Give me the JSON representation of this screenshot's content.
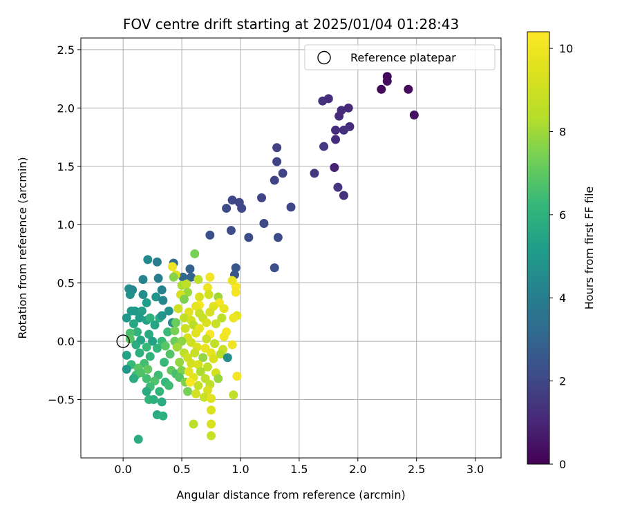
{
  "chart_data": {
    "type": "scatter",
    "title": "FOV centre drift starting at 2025/01/04 01:28:43",
    "xlabel": "Angular distance from reference (arcmin)",
    "ylabel": "Rotation from reference (arcmin)",
    "xlim": [
      -0.36,
      3.22
    ],
    "ylim": [
      -1.0,
      2.6
    ],
    "xticks": [
      0.0,
      0.5,
      1.0,
      1.5,
      2.0,
      2.5,
      3.0
    ],
    "xtick_labels": [
      "0.0",
      "0.5",
      "1.0",
      "1.5",
      "2.0",
      "2.5",
      "3.0"
    ],
    "yticks": [
      -0.5,
      0.0,
      0.5,
      1.0,
      1.5,
      2.0,
      2.5
    ],
    "ytick_labels": [
      "−0.5",
      "0.0",
      "0.5",
      "1.0",
      "1.5",
      "2.0",
      "2.5"
    ],
    "grid": true,
    "legend": {
      "position": "top-right",
      "entries": [
        "Reference platepar"
      ]
    },
    "colorbar": {
      "label": "Hours from first FF file",
      "min": 0,
      "max": 10.4,
      "ticks": [
        0,
        2,
        4,
        6,
        8,
        10
      ],
      "tick_labels": [
        "0",
        "2",
        "4",
        "6",
        "8",
        "10"
      ],
      "colormap": "viridis"
    },
    "reference_point": {
      "x": 0.0,
      "y": 0.0
    },
    "points": [
      {
        "x": 2.25,
        "y": 2.27,
        "h": 0.2
      },
      {
        "x": 2.25,
        "y": 2.23,
        "h": 0.3
      },
      {
        "x": 2.2,
        "y": 2.16,
        "h": 0.2
      },
      {
        "x": 2.43,
        "y": 2.16,
        "h": 0.3
      },
      {
        "x": 2.48,
        "y": 1.94,
        "h": 0.4
      },
      {
        "x": 1.75,
        "y": 2.08,
        "h": 1.2
      },
      {
        "x": 1.7,
        "y": 2.06,
        "h": 1.3
      },
      {
        "x": 1.86,
        "y": 1.98,
        "h": 1.2
      },
      {
        "x": 1.92,
        "y": 2.0,
        "h": 1.1
      },
      {
        "x": 1.84,
        "y": 1.93,
        "h": 1.1
      },
      {
        "x": 1.93,
        "y": 1.84,
        "h": 1.2
      },
      {
        "x": 1.81,
        "y": 1.81,
        "h": 1.2
      },
      {
        "x": 1.88,
        "y": 1.81,
        "h": 1.3
      },
      {
        "x": 1.81,
        "y": 1.73,
        "h": 1.2
      },
      {
        "x": 1.71,
        "y": 1.67,
        "h": 1.6
      },
      {
        "x": 1.8,
        "y": 1.49,
        "h": 0.9
      },
      {
        "x": 1.83,
        "y": 1.32,
        "h": 1.4
      },
      {
        "x": 1.88,
        "y": 1.25,
        "h": 1.3
      },
      {
        "x": 1.63,
        "y": 1.44,
        "h": 1.5
      },
      {
        "x": 1.31,
        "y": 1.66,
        "h": 1.8
      },
      {
        "x": 1.31,
        "y": 1.54,
        "h": 1.9
      },
      {
        "x": 1.36,
        "y": 1.44,
        "h": 1.9
      },
      {
        "x": 1.29,
        "y": 1.38,
        "h": 1.9
      },
      {
        "x": 1.18,
        "y": 1.23,
        "h": 1.9
      },
      {
        "x": 1.43,
        "y": 1.15,
        "h": 2.0
      },
      {
        "x": 0.93,
        "y": 1.21,
        "h": 2.0
      },
      {
        "x": 0.99,
        "y": 1.19,
        "h": 2.0
      },
      {
        "x": 1.01,
        "y": 1.14,
        "h": 2.0
      },
      {
        "x": 0.88,
        "y": 1.14,
        "h": 2.1
      },
      {
        "x": 1.2,
        "y": 1.01,
        "h": 2.1
      },
      {
        "x": 0.92,
        "y": 0.95,
        "h": 2.2
      },
      {
        "x": 0.74,
        "y": 0.91,
        "h": 2.3
      },
      {
        "x": 1.07,
        "y": 0.89,
        "h": 2.2
      },
      {
        "x": 1.32,
        "y": 0.89,
        "h": 2.2
      },
      {
        "x": 1.29,
        "y": 0.63,
        "h": 2.3
      },
      {
        "x": 0.96,
        "y": 0.63,
        "h": 2.5
      },
      {
        "x": 0.95,
        "y": 0.57,
        "h": 2.5
      },
      {
        "x": 0.57,
        "y": 0.62,
        "h": 2.9
      },
      {
        "x": 0.58,
        "y": 0.55,
        "h": 3.0
      },
      {
        "x": 0.51,
        "y": 0.55,
        "h": 3.2
      },
      {
        "x": 0.43,
        "y": 0.67,
        "h": 3.3
      },
      {
        "x": 0.29,
        "y": 0.68,
        "h": 4.0
      },
      {
        "x": 0.21,
        "y": 0.7,
        "h": 4.5
      },
      {
        "x": 0.3,
        "y": 0.54,
        "h": 4.0
      },
      {
        "x": 0.17,
        "y": 0.53,
        "h": 4.2
      },
      {
        "x": 0.05,
        "y": 0.45,
        "h": 4.6
      },
      {
        "x": 0.08,
        "y": 0.44,
        "h": 4.4
      },
      {
        "x": 0.33,
        "y": 0.44,
        "h": 4.1
      },
      {
        "x": 0.06,
        "y": 0.4,
        "h": 4.7
      },
      {
        "x": 0.17,
        "y": 0.4,
        "h": 4.6
      },
      {
        "x": 0.28,
        "y": 0.38,
        "h": 4.9
      },
      {
        "x": 0.34,
        "y": 0.35,
        "h": 4.3
      },
      {
        "x": 0.2,
        "y": 0.33,
        "h": 5.2
      },
      {
        "x": 0.07,
        "y": 0.26,
        "h": 5.0
      },
      {
        "x": 0.1,
        "y": 0.26,
        "h": 5.0
      },
      {
        "x": 0.16,
        "y": 0.26,
        "h": 5.3
      },
      {
        "x": 0.39,
        "y": 0.26,
        "h": 4.8
      },
      {
        "x": 0.42,
        "y": 0.16,
        "h": 4.6
      },
      {
        "x": 0.03,
        "y": 0.2,
        "h": 5.0
      },
      {
        "x": 0.14,
        "y": 0.2,
        "h": 5.1
      },
      {
        "x": 0.2,
        "y": 0.18,
        "h": 5.4
      },
      {
        "x": 0.23,
        "y": 0.2,
        "h": 6.0
      },
      {
        "x": 0.31,
        "y": 0.2,
        "h": 5.8
      },
      {
        "x": 0.33,
        "y": 0.22,
        "h": 4.9
      },
      {
        "x": 0.09,
        "y": 0.15,
        "h": 5.6
      },
      {
        "x": 0.27,
        "y": 0.14,
        "h": 5.5
      },
      {
        "x": 0.12,
        "y": 0.08,
        "h": 6.0
      },
      {
        "x": 0.06,
        "y": 0.07,
        "h": 6.6
      },
      {
        "x": 0.22,
        "y": 0.06,
        "h": 5.7
      },
      {
        "x": 0.38,
        "y": 0.08,
        "h": 6.3
      },
      {
        "x": 0.06,
        "y": 0.02,
        "h": 6.8
      },
      {
        "x": 0.15,
        "y": 0.01,
        "h": 5.5
      },
      {
        "x": 0.25,
        "y": 0.0,
        "h": 5.4
      },
      {
        "x": 0.33,
        "y": 0.0,
        "h": 6.3
      },
      {
        "x": 0.44,
        "y": 0.0,
        "h": 7.2
      },
      {
        "x": 0.11,
        "y": -0.03,
        "h": 5.8
      },
      {
        "x": 0.2,
        "y": -0.05,
        "h": 6.3
      },
      {
        "x": 0.29,
        "y": -0.06,
        "h": 6.2
      },
      {
        "x": 0.36,
        "y": -0.04,
        "h": 6.9
      },
      {
        "x": 0.03,
        "y": -0.12,
        "h": 5.4
      },
      {
        "x": 0.14,
        "y": -0.1,
        "h": 5.9
      },
      {
        "x": 0.23,
        "y": -0.13,
        "h": 6.1
      },
      {
        "x": 0.4,
        "y": -0.11,
        "h": 6.8
      },
      {
        "x": 0.07,
        "y": -0.2,
        "h": 6.3
      },
      {
        "x": 0.18,
        "y": -0.19,
        "h": 6.5
      },
      {
        "x": 0.35,
        "y": -0.18,
        "h": 6.3
      },
      {
        "x": 0.13,
        "y": -0.23,
        "h": 6.9
      },
      {
        "x": 0.03,
        "y": -0.24,
        "h": 5.0
      },
      {
        "x": 0.21,
        "y": -0.24,
        "h": 7.0
      },
      {
        "x": 0.41,
        "y": -0.25,
        "h": 7.0
      },
      {
        "x": 0.11,
        "y": -0.29,
        "h": 6.4
      },
      {
        "x": 0.15,
        "y": -0.27,
        "h": 6.7
      },
      {
        "x": 0.3,
        "y": -0.29,
        "h": 6.4
      },
      {
        "x": 0.45,
        "y": -0.28,
        "h": 6.6
      },
      {
        "x": 0.09,
        "y": -0.32,
        "h": 5.8
      },
      {
        "x": 0.2,
        "y": -0.32,
        "h": 6.5
      },
      {
        "x": 0.27,
        "y": -0.34,
        "h": 6.7
      },
      {
        "x": 0.36,
        "y": -0.35,
        "h": 6.2
      },
      {
        "x": 0.23,
        "y": -0.39,
        "h": 6.4
      },
      {
        "x": 0.39,
        "y": -0.38,
        "h": 6.4
      },
      {
        "x": 0.31,
        "y": -0.43,
        "h": 6.1
      },
      {
        "x": 0.2,
        "y": -0.43,
        "h": 5.7
      },
      {
        "x": 0.22,
        "y": -0.5,
        "h": 6.2
      },
      {
        "x": 0.26,
        "y": -0.5,
        "h": 5.9
      },
      {
        "x": 0.33,
        "y": -0.52,
        "h": 5.8
      },
      {
        "x": 0.29,
        "y": -0.63,
        "h": 5.7
      },
      {
        "x": 0.34,
        "y": -0.64,
        "h": 5.9
      },
      {
        "x": 0.13,
        "y": -0.84,
        "h": 5.8
      },
      {
        "x": 0.42,
        "y": 0.64,
        "h": 9.9
      },
      {
        "x": 0.45,
        "y": 0.57,
        "h": 9.4
      },
      {
        "x": 0.43,
        "y": 0.55,
        "h": 7.6
      },
      {
        "x": 0.61,
        "y": 0.75,
        "h": 7.4
      },
      {
        "x": 0.5,
        "y": 0.48,
        "h": 8.2
      },
      {
        "x": 0.54,
        "y": 0.49,
        "h": 8.6
      },
      {
        "x": 0.64,
        "y": 0.53,
        "h": 8.5
      },
      {
        "x": 0.74,
        "y": 0.55,
        "h": 10.1
      },
      {
        "x": 0.96,
        "y": 0.47,
        "h": 10.3
      },
      {
        "x": 0.93,
        "y": 0.52,
        "h": 9.8
      },
      {
        "x": 0.96,
        "y": 0.42,
        "h": 10.1
      },
      {
        "x": 0.72,
        "y": 0.46,
        "h": 9.9
      },
      {
        "x": 0.55,
        "y": 0.42,
        "h": 7.9
      },
      {
        "x": 0.49,
        "y": 0.4,
        "h": 9.2
      },
      {
        "x": 0.52,
        "y": 0.36,
        "h": 7.5
      },
      {
        "x": 0.65,
        "y": 0.38,
        "h": 9.3
      },
      {
        "x": 0.73,
        "y": 0.4,
        "h": 9.1
      },
      {
        "x": 0.81,
        "y": 0.38,
        "h": 8.0
      },
      {
        "x": 0.82,
        "y": 0.33,
        "h": 10.1
      },
      {
        "x": 0.65,
        "y": 0.31,
        "h": 10.2
      },
      {
        "x": 0.62,
        "y": 0.3,
        "h": 9.7
      },
      {
        "x": 0.47,
        "y": 0.28,
        "h": 9.0
      },
      {
        "x": 0.77,
        "y": 0.3,
        "h": 9.5
      },
      {
        "x": 0.86,
        "y": 0.28,
        "h": 9.7
      },
      {
        "x": 0.56,
        "y": 0.25,
        "h": 9.6
      },
      {
        "x": 0.52,
        "y": 0.2,
        "h": 8.6
      },
      {
        "x": 0.65,
        "y": 0.24,
        "h": 8.8
      },
      {
        "x": 0.74,
        "y": 0.25,
        "h": 9.2
      },
      {
        "x": 0.97,
        "y": 0.22,
        "h": 9.7
      },
      {
        "x": 0.94,
        "y": 0.2,
        "h": 9.9
      },
      {
        "x": 0.58,
        "y": 0.18,
        "h": 9.1
      },
      {
        "x": 0.68,
        "y": 0.2,
        "h": 8.8
      },
      {
        "x": 0.84,
        "y": 0.2,
        "h": 8.5
      },
      {
        "x": 0.45,
        "y": 0.16,
        "h": 7.2
      },
      {
        "x": 0.6,
        "y": 0.14,
        "h": 8.4
      },
      {
        "x": 0.71,
        "y": 0.16,
        "h": 9.3
      },
      {
        "x": 0.79,
        "y": 0.15,
        "h": 8.8
      },
      {
        "x": 0.53,
        "y": 0.11,
        "h": 8.9
      },
      {
        "x": 0.65,
        "y": 0.11,
        "h": 9.7
      },
      {
        "x": 0.44,
        "y": 0.09,
        "h": 7.4
      },
      {
        "x": 0.62,
        "y": 0.07,
        "h": 9.6
      },
      {
        "x": 0.74,
        "y": 0.06,
        "h": 10.2
      },
      {
        "x": 0.88,
        "y": 0.08,
        "h": 10.2
      },
      {
        "x": 0.55,
        "y": 0.03,
        "h": 9.3
      },
      {
        "x": 0.71,
        "y": 0.02,
        "h": 8.9
      },
      {
        "x": 0.86,
        "y": 0.04,
        "h": 10.0
      },
      {
        "x": 0.5,
        "y": 0.0,
        "h": 7.7
      },
      {
        "x": 0.58,
        "y": -0.01,
        "h": 9.0
      },
      {
        "x": 0.78,
        "y": -0.02,
        "h": 8.6
      },
      {
        "x": 0.93,
        "y": -0.03,
        "h": 9.9
      },
      {
        "x": 0.46,
        "y": -0.05,
        "h": 8.0
      },
      {
        "x": 0.63,
        "y": -0.05,
        "h": 9.4
      },
      {
        "x": 0.7,
        "y": -0.06,
        "h": 9.8
      },
      {
        "x": 0.85,
        "y": -0.07,
        "h": 8.9
      },
      {
        "x": 0.52,
        "y": -0.1,
        "h": 8.5
      },
      {
        "x": 0.61,
        "y": -0.1,
        "h": 8.8
      },
      {
        "x": 0.75,
        "y": -0.1,
        "h": 9.7
      },
      {
        "x": 0.83,
        "y": -0.11,
        "h": 8.4
      },
      {
        "x": 0.55,
        "y": -0.14,
        "h": 9.0
      },
      {
        "x": 0.68,
        "y": -0.14,
        "h": 7.8
      },
      {
        "x": 0.77,
        "y": -0.15,
        "h": 9.3
      },
      {
        "x": 0.89,
        "y": -0.14,
        "h": 4.6
      },
      {
        "x": 0.48,
        "y": -0.18,
        "h": 7.8
      },
      {
        "x": 0.58,
        "y": -0.19,
        "h": 9.1
      },
      {
        "x": 0.64,
        "y": -0.2,
        "h": 9.3
      },
      {
        "x": 0.72,
        "y": -0.22,
        "h": 8.6
      },
      {
        "x": 0.5,
        "y": -0.25,
        "h": 7.5
      },
      {
        "x": 0.56,
        "y": -0.26,
        "h": 9.6
      },
      {
        "x": 0.66,
        "y": -0.26,
        "h": 8.2
      },
      {
        "x": 0.79,
        "y": -0.27,
        "h": 9.2
      },
      {
        "x": 0.97,
        "y": -0.3,
        "h": 10.1
      },
      {
        "x": 0.48,
        "y": -0.31,
        "h": 6.8
      },
      {
        "x": 0.6,
        "y": -0.31,
        "h": 9.6
      },
      {
        "x": 0.7,
        "y": -0.32,
        "h": 8.6
      },
      {
        "x": 0.81,
        "y": -0.32,
        "h": 7.9
      },
      {
        "x": 0.53,
        "y": -0.35,
        "h": 7.5
      },
      {
        "x": 0.57,
        "y": -0.35,
        "h": 10.2
      },
      {
        "x": 0.64,
        "y": -0.38,
        "h": 8.7
      },
      {
        "x": 0.74,
        "y": -0.37,
        "h": 8.6
      },
      {
        "x": 0.55,
        "y": -0.43,
        "h": 7.4
      },
      {
        "x": 0.72,
        "y": -0.42,
        "h": 9.3
      },
      {
        "x": 0.62,
        "y": -0.45,
        "h": 9.1
      },
      {
        "x": 0.69,
        "y": -0.48,
        "h": 8.9
      },
      {
        "x": 0.75,
        "y": -0.49,
        "h": 9.5
      },
      {
        "x": 0.94,
        "y": -0.46,
        "h": 8.6
      },
      {
        "x": 0.75,
        "y": -0.59,
        "h": 9.4
      },
      {
        "x": 0.6,
        "y": -0.71,
        "h": 8.5
      },
      {
        "x": 0.75,
        "y": -0.71,
        "h": 9.3
      },
      {
        "x": 0.75,
        "y": -0.81,
        "h": 8.8
      }
    ]
  }
}
